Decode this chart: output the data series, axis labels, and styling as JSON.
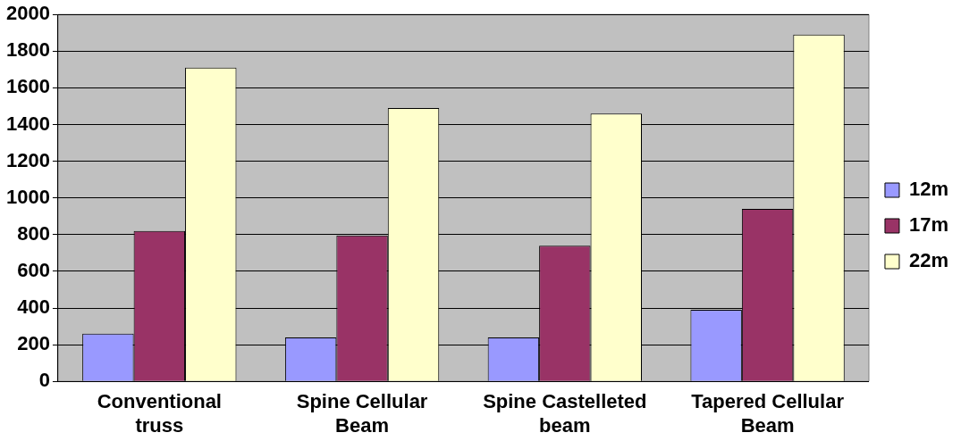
{
  "chart_data": {
    "type": "bar",
    "categories": [
      "Conventional truss",
      "Spine Cellular Beam",
      "Spine Castelleted beam",
      "Tapered Cellular Beam"
    ],
    "series": [
      {
        "name": "12m",
        "color": "#9999ff",
        "values": [
          260,
          240,
          240,
          390
        ]
      },
      {
        "name": "17m",
        "color": "#993366",
        "values": [
          820,
          795,
          740,
          940
        ]
      },
      {
        "name": "22m",
        "color": "#ffffcc",
        "values": [
          1710,
          1490,
          1460,
          1890
        ]
      }
    ],
    "ylim": [
      0,
      2000
    ],
    "yticks": [
      0,
      200,
      400,
      600,
      800,
      1000,
      1200,
      1400,
      1600,
      1800,
      2000
    ],
    "grid": "y",
    "legend": "right"
  }
}
